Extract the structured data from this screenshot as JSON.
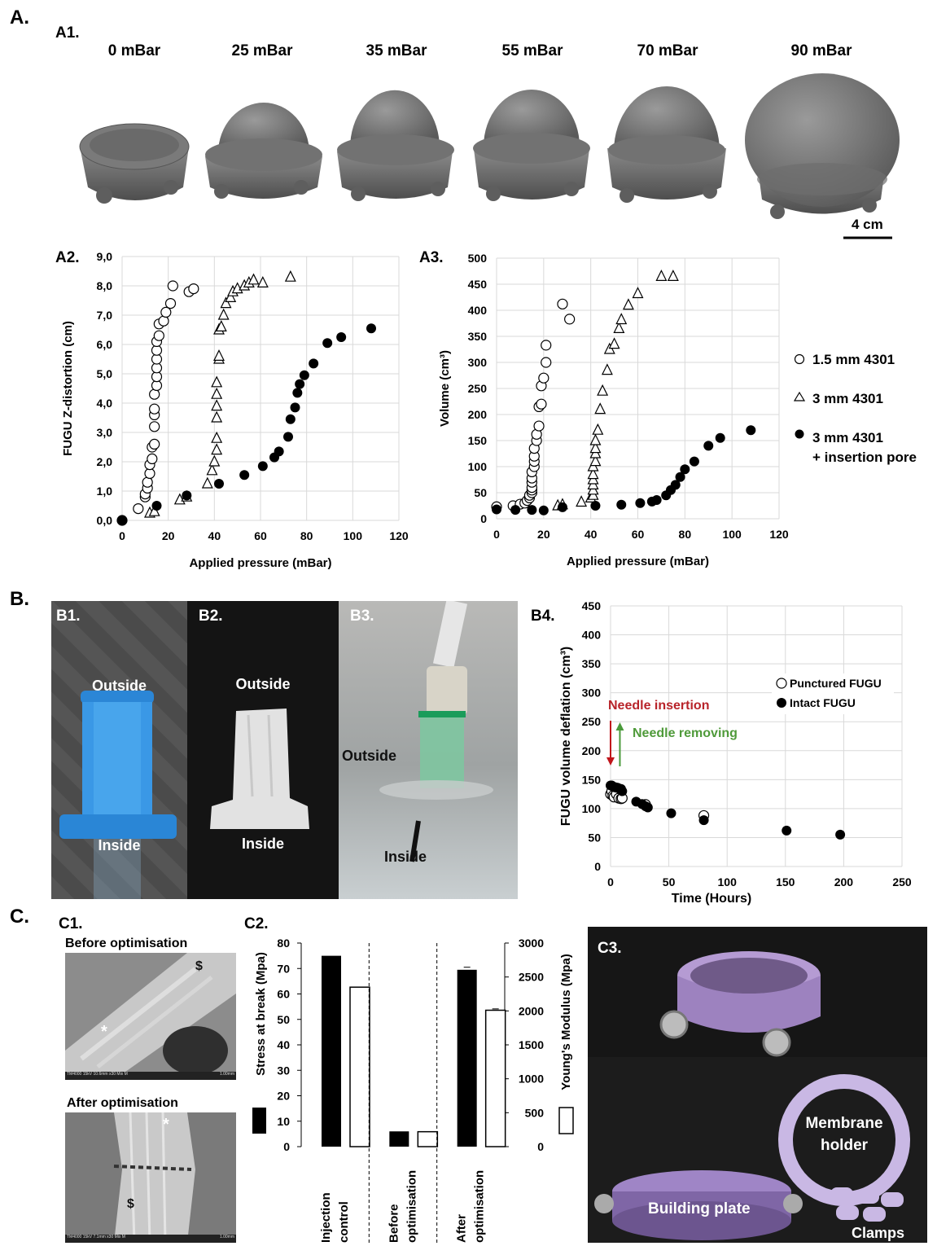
{
  "panel_A": {
    "label": "A.",
    "a1": {
      "label": "A1.",
      "pressures": [
        "0 mBar",
        "25 mBar",
        "35 mBar",
        "55 mBar",
        "70 mBar",
        "90 mBar"
      ],
      "scalebar": "4 cm"
    },
    "a2": {
      "label": "A2."
    },
    "a3": {
      "label": "A3."
    },
    "legend": {
      "items": [
        "1.5 mm 4301",
        "3 mm 4301",
        "3 mm 4301"
      ],
      "extra": "+ insertion pore"
    }
  },
  "panel_B": {
    "label": "B.",
    "b1": {
      "label": "B1.",
      "outside": "Outside",
      "inside": "Inside"
    },
    "b2": {
      "label": "B2.",
      "outside": "Outside",
      "inside": "Inside"
    },
    "b3": {
      "label": "B3.",
      "outside": "Outside",
      "inside": "Inside"
    },
    "b4": {
      "label": "B4.",
      "annot_insert": "Needle insertion",
      "annot_remove": "Needle removing"
    }
  },
  "panel_C": {
    "label": "C.",
    "c1": {
      "label": "C1.",
      "before": "Before optimisation",
      "after": "After optimisation",
      "sem_info_1": "TM4000 15kV 10.6mm x30 Mix M",
      "sem_info_2": "TM4000 15kV 7.1mm x30 Mix M",
      "scale": "1.00mm"
    },
    "c2": {
      "label": "C2."
    },
    "c3": {
      "label": "C3.",
      "holder": "Membrane holder",
      "plate": "Building plate",
      "clamps": "Clamps"
    }
  },
  "colors": {
    "red_arrow": "#c0151b",
    "green_arrow": "#4a9a3a",
    "red_text": "#b8242a",
    "green_text": "#4f9a3a"
  },
  "chart_data": [
    {
      "type": "scatter",
      "xlabel": "Applied pressure (mBar)",
      "ylabel": "FUGU Z-distortion (cm)",
      "xlim": [
        0,
        120
      ],
      "ylim": [
        0,
        9
      ],
      "xticks": [
        "0",
        "20",
        "40",
        "60",
        "80",
        "100",
        "120"
      ],
      "yticks": [
        "0,0",
        "1,0",
        "2,0",
        "3,0",
        "4,0",
        "5,0",
        "6,0",
        "7,0",
        "8,0",
        "9,0"
      ],
      "grid": true,
      "series": [
        {
          "name": "1.5 mm 4301",
          "marker": "open-circle",
          "x": [
            0,
            7,
            10,
            10,
            11,
            11,
            12,
            12,
            13,
            13,
            14,
            14,
            14,
            14,
            14,
            15,
            15,
            15,
            15,
            15,
            15,
            16,
            16,
            18,
            19,
            21,
            22,
            29,
            31
          ],
          "y": [
            0,
            0.4,
            0.8,
            0.9,
            1.1,
            1.3,
            1.6,
            1.9,
            2.1,
            2.5,
            2.6,
            3.2,
            3.6,
            3.8,
            4.3,
            4.6,
            4.9,
            5.2,
            5.5,
            5.8,
            6.1,
            6.3,
            6.7,
            6.8,
            7.1,
            7.4,
            8.0,
            7.8,
            7.9
          ]
        },
        {
          "name": "3 mm 4301",
          "marker": "open-triangle",
          "x": [
            12,
            14,
            25,
            28,
            37,
            39,
            40,
            41,
            41,
            41,
            41,
            41,
            41,
            42,
            42,
            42,
            43,
            44,
            45,
            47,
            48,
            50,
            53,
            55,
            57,
            61,
            73
          ],
          "y": [
            0.25,
            0.3,
            0.7,
            0.8,
            1.25,
            1.7,
            2.0,
            2.4,
            2.8,
            3.5,
            3.9,
            4.3,
            4.7,
            5.5,
            5.6,
            6.5,
            6.6,
            7.0,
            7.4,
            7.6,
            7.8,
            7.9,
            8.0,
            8.1,
            8.2,
            8.1,
            8.3
          ]
        },
        {
          "name": "3 mm 4301 + insertion pore",
          "marker": "filled-circle",
          "x": [
            0,
            15,
            28,
            42,
            53,
            61,
            66,
            68,
            72,
            73,
            75,
            76,
            77,
            79,
            83,
            89,
            95,
            108
          ],
          "y": [
            0,
            0.5,
            0.85,
            1.25,
            1.55,
            1.85,
            2.15,
            2.35,
            2.85,
            3.45,
            3.85,
            4.35,
            4.65,
            4.95,
            5.35,
            6.05,
            6.25,
            6.55
          ]
        }
      ]
    },
    {
      "type": "scatter",
      "xlabel": "Applied pressure (mBar)",
      "ylabel": "Volume (cm³)",
      "xlim": [
        0,
        120
      ],
      "ylim": [
        0,
        500
      ],
      "xticks": [
        "0",
        "20",
        "40",
        "60",
        "80",
        "100",
        "120"
      ],
      "yticks": [
        "0",
        "50",
        "100",
        "150",
        "200",
        "250",
        "300",
        "350",
        "400",
        "450",
        "500"
      ],
      "grid": true,
      "series": [
        {
          "name": "1.5 mm 4301",
          "marker": "open-circle",
          "x": [
            0,
            7,
            10,
            12,
            13,
            14,
            14,
            15,
            15,
            15,
            15,
            15,
            15,
            16,
            16,
            16,
            16,
            17,
            17,
            18,
            18,
            19,
            19,
            20,
            21,
            21,
            28,
            31
          ],
          "y": [
            23,
            25,
            28,
            30,
            35,
            40,
            45,
            50,
            55,
            60,
            70,
            78,
            90,
            100,
            110,
            120,
            135,
            150,
            162,
            178,
            215,
            220,
            255,
            270,
            300,
            333,
            412,
            383
          ]
        },
        {
          "name": "3 mm 4301",
          "marker": "open-triangle",
          "x": [
            26,
            28,
            36,
            40,
            41,
            41,
            41,
            41,
            41,
            41,
            42,
            42,
            42,
            42,
            43,
            44,
            45,
            47,
            48,
            50,
            52,
            53,
            56,
            60,
            70,
            75
          ],
          "y": [
            25,
            27,
            32,
            40,
            45,
            55,
            65,
            75,
            85,
            100,
            110,
            125,
            135,
            150,
            170,
            210,
            245,
            285,
            325,
            335,
            365,
            382,
            410,
            432,
            465,
            465
          ]
        },
        {
          "name": "3 mm 4301 + insertion pore",
          "marker": "filled-circle",
          "x": [
            0,
            8,
            15,
            20,
            28,
            42,
            53,
            61,
            66,
            68,
            72,
            74,
            76,
            78,
            80,
            84,
            90,
            95,
            108
          ],
          "y": [
            18,
            17,
            17,
            16,
            22,
            25,
            27,
            30,
            33,
            36,
            45,
            55,
            65,
            80,
            95,
            110,
            140,
            155,
            170
          ]
        }
      ]
    },
    {
      "type": "scatter",
      "xlabel": "Time (Hours)",
      "ylabel": "FUGU volume deflation (cm³)",
      "xlim": [
        0,
        250
      ],
      "ylim": [
        0,
        450
      ],
      "xticks": [
        "0",
        "50",
        "100",
        "150",
        "200",
        "250"
      ],
      "yticks": [
        "0",
        "50",
        "100",
        "150",
        "200",
        "250",
        "300",
        "350",
        "400",
        "450"
      ],
      "grid": true,
      "legend": "top-right",
      "series": [
        {
          "name": "Punctured FUGU",
          "marker": "open-circle",
          "x": [
            0,
            1,
            2,
            3,
            5,
            7,
            9,
            10,
            30,
            80
          ],
          "y": [
            125,
            130,
            122,
            120,
            125,
            118,
            117,
            118,
            107,
            88
          ]
        },
        {
          "name": "Intact FUGU",
          "marker": "filled-circle",
          "x": [
            0,
            1,
            2,
            3,
            4,
            5,
            6,
            7,
            8,
            9,
            10,
            22,
            27,
            30,
            32,
            52,
            80,
            151,
            197
          ],
          "y": [
            140,
            140,
            138,
            137,
            137,
            136,
            136,
            135,
            134,
            134,
            130,
            112,
            108,
            104,
            102,
            92,
            80,
            62,
            55
          ]
        }
      ]
    },
    {
      "type": "bar",
      "categories": [
        "Injection control",
        "Before optimisation",
        "After optimisation"
      ],
      "y1label": "Stress at break (Mpa)",
      "y2label": "Young's Modulus  (Mpa)",
      "y1lim": [
        0,
        80
      ],
      "y2lim": [
        0,
        3000
      ],
      "y1ticks": [
        "0",
        "10",
        "20",
        "30",
        "40",
        "50",
        "60",
        "70",
        "80"
      ],
      "y2ticks": [
        "0",
        "500",
        "1000",
        "1500",
        "2000",
        "2500",
        "3000"
      ],
      "series": [
        {
          "name": "Stress at break",
          "axis": "left",
          "fill": "black",
          "values": [
            75,
            6,
            69.5
          ]
        },
        {
          "name": "Young's Modulus",
          "axis": "right",
          "fill": "white",
          "values": [
            2350,
            220,
            2010
          ]
        }
      ]
    }
  ]
}
